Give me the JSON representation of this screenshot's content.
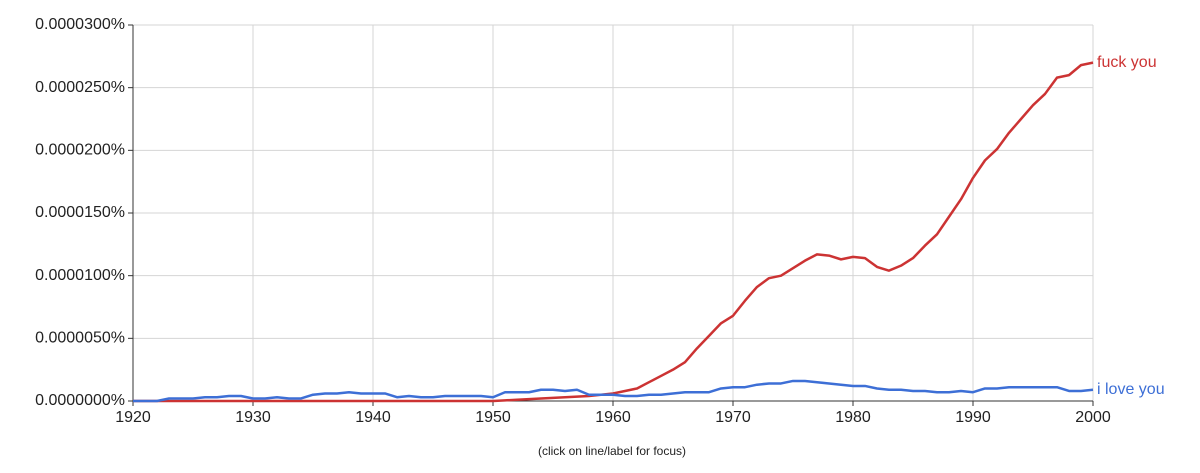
{
  "chart_data": {
    "type": "line",
    "footer": "(click on line/label for focus)",
    "x": [
      1920,
      1921,
      1922,
      1923,
      1924,
      1925,
      1926,
      1927,
      1928,
      1929,
      1930,
      1931,
      1932,
      1933,
      1934,
      1935,
      1936,
      1937,
      1938,
      1939,
      1940,
      1941,
      1942,
      1943,
      1944,
      1945,
      1946,
      1947,
      1948,
      1949,
      1950,
      1951,
      1952,
      1953,
      1954,
      1955,
      1956,
      1957,
      1958,
      1959,
      1960,
      1961,
      1962,
      1963,
      1964,
      1965,
      1966,
      1967,
      1968,
      1969,
      1970,
      1971,
      1972,
      1973,
      1974,
      1975,
      1976,
      1977,
      1978,
      1979,
      1980,
      1981,
      1982,
      1983,
      1984,
      1985,
      1986,
      1987,
      1988,
      1989,
      1990,
      1991,
      1992,
      1993,
      1994,
      1995,
      1996,
      1997,
      1998,
      1999,
      2000
    ],
    "series": [
      {
        "name": "fuck you",
        "color": "#cc3333",
        "values": [
          0,
          0,
          0,
          0,
          0,
          0,
          0,
          0,
          0,
          0,
          0,
          0,
          0,
          0,
          0,
          0,
          0,
          0,
          0,
          0,
          0,
          0,
          0,
          0,
          0,
          0,
          0,
          0,
          0,
          0,
          0,
          5e-08,
          1e-07,
          1.5e-07,
          2e-07,
          2.5e-07,
          3e-07,
          3.5e-07,
          4e-07,
          5e-07,
          6e-07,
          8e-07,
          1e-06,
          1.5e-06,
          2e-06,
          2.5e-06,
          3.1e-06,
          4.2e-06,
          5.2e-06,
          6.2e-06,
          6.8e-06,
          8e-06,
          9.1e-06,
          9.8e-06,
          1e-05,
          1.06e-05,
          1.12e-05,
          1.17e-05,
          1.16e-05,
          1.13e-05,
          1.15e-05,
          1.14e-05,
          1.07e-05,
          1.04e-05,
          1.08e-05,
          1.14e-05,
          1.24e-05,
          1.33e-05,
          1.47e-05,
          1.61e-05,
          1.78e-05,
          1.92e-05,
          2.01e-05,
          2.14e-05,
          2.25e-05,
          2.36e-05,
          2.45e-05,
          2.58e-05,
          2.6e-05,
          2.68e-05,
          2.7e-05
        ]
      },
      {
        "name": "i love you",
        "color": "#3d6fd6",
        "values": [
          0,
          0,
          0,
          2e-07,
          2e-07,
          2e-07,
          3e-07,
          3e-07,
          4e-07,
          4e-07,
          2e-07,
          2e-07,
          3e-07,
          2e-07,
          2e-07,
          5e-07,
          6e-07,
          6e-07,
          7e-07,
          6e-07,
          6e-07,
          6e-07,
          3e-07,
          4e-07,
          3e-07,
          3e-07,
          4e-07,
          4e-07,
          4e-07,
          4e-07,
          3e-07,
          7e-07,
          7e-07,
          7e-07,
          9e-07,
          9e-07,
          8e-07,
          9e-07,
          5e-07,
          5e-07,
          5e-07,
          4e-07,
          4e-07,
          5e-07,
          5e-07,
          6e-07,
          7e-07,
          7e-07,
          7e-07,
          1e-06,
          1.1e-06,
          1.1e-06,
          1.3e-06,
          1.4e-06,
          1.4e-06,
          1.6e-06,
          1.6e-06,
          1.5e-06,
          1.4e-06,
          1.3e-06,
          1.2e-06,
          1.2e-06,
          1e-06,
          9e-07,
          9e-07,
          8e-07,
          8e-07,
          7e-07,
          7e-07,
          8e-07,
          7e-07,
          1e-06,
          1e-06,
          1.1e-06,
          1.1e-06,
          1.1e-06,
          1.1e-06,
          1.1e-06,
          8e-07,
          8e-07,
          9e-07
        ]
      }
    ],
    "xlim": [
      1920,
      2000
    ],
    "xticks": [
      1920,
      1930,
      1940,
      1950,
      1960,
      1970,
      1980,
      1990,
      2000
    ],
    "ylim": [
      0,
      3e-05
    ],
    "yticks": [
      {
        "value": 0,
        "label": "0.0000000%"
      },
      {
        "value": 5e-06,
        "label": "0.0000050%"
      },
      {
        "value": 1e-05,
        "label": "0.0000100%"
      },
      {
        "value": 1.5e-05,
        "label": "0.0000150%"
      },
      {
        "value": 2e-05,
        "label": "0.0000200%"
      },
      {
        "value": 2.5e-05,
        "label": "0.0000250%"
      },
      {
        "value": 3e-05,
        "label": "0.0000300%"
      }
    ],
    "grid": true
  }
}
